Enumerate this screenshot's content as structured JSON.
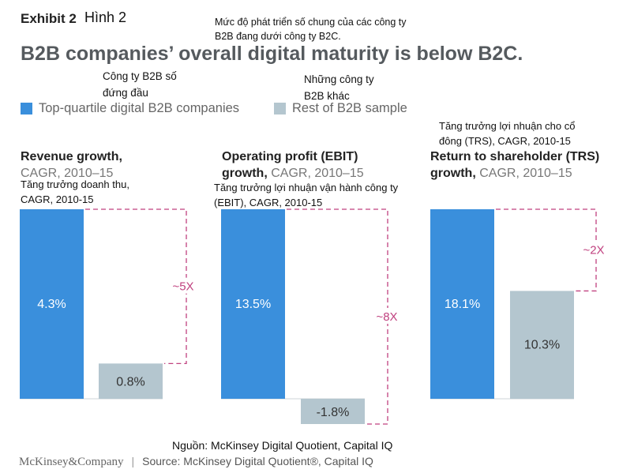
{
  "header": {
    "exhibit": "Exhibit 2",
    "exhibit_vn": "Hình 2",
    "title_vn": "Mức độ phát triển số chung của các công ty B2B đang dưới công ty B2C.",
    "title": "B2B companies’ overall digital maturity is below B2C."
  },
  "legend": {
    "top_vn": "Công ty B2B số đứng đầu",
    "top_label": "Top-quartile digital B2B companies",
    "rest_vn": "Những công ty B2B khác",
    "rest_label": "Rest of B2B sample"
  },
  "panels": [
    {
      "title_bold": "Revenue growth,",
      "title_rest": "CAGR, 2010–15",
      "vn": "Tăng trưởng doanh thu, CAGR, 2010-15",
      "ratio": "~5X"
    },
    {
      "title_bold_1": "Operating profit (EBIT)",
      "title_bold_2": "growth,",
      "title_rest": "CAGR, 2010–15",
      "vn": "Tăng trưởng lợi nhuận vận hành công ty (EBIT), CAGR, 2010-15",
      "ratio": "~8X"
    },
    {
      "vn_top": "Tăng trưởng lợi nhuận cho cổ đông (TRS), CAGR, 2010-15",
      "title_bold_1": "Return to shareholder (TRS)",
      "title_bold_2": "growth,",
      "title_rest": "CAGR, 2010–15",
      "ratio": "~2X"
    }
  ],
  "chart_data": [
    {
      "type": "bar",
      "title": "Revenue growth, CAGR, 2010–15",
      "categories": [
        "Top-quartile digital B2B companies",
        "Rest of B2B sample"
      ],
      "values": [
        4.3,
        0.8
      ],
      "labels": [
        "4.3%",
        "0.8%"
      ],
      "colors": [
        "#3a8fdc",
        "#b4c6cf"
      ],
      "annotation": "~5X"
    },
    {
      "type": "bar",
      "title": "Operating profit (EBIT) growth, CAGR, 2010–15",
      "categories": [
        "Top-quartile digital B2B companies",
        "Rest of B2B sample"
      ],
      "values": [
        13.5,
        -1.8
      ],
      "labels": [
        "13.5%",
        "-1.8%"
      ],
      "colors": [
        "#3a8fdc",
        "#b4c6cf"
      ],
      "annotation": "~8X"
    },
    {
      "type": "bar",
      "title": "Return to shareholder (TRS) growth, CAGR, 2010–15",
      "categories": [
        "Top-quartile digital B2B companies",
        "Rest of B2B sample"
      ],
      "values": [
        18.1,
        10.3
      ],
      "labels": [
        "18.1%",
        "10.3%"
      ],
      "colors": [
        "#3a8fdc",
        "#b4c6cf"
      ],
      "annotation": "~2X"
    }
  ],
  "footer": {
    "source_vn": "Nguồn: McKinsey Digital Quotient, Capital IQ",
    "brand": "McKinsey&Company",
    "separator": "|",
    "source": "Source: McKinsey Digital Quotient®, Capital IQ"
  },
  "colors": {
    "top_quartile": "#3a8fdc",
    "rest": "#b4c6cf",
    "annotation": "#c0417f"
  }
}
